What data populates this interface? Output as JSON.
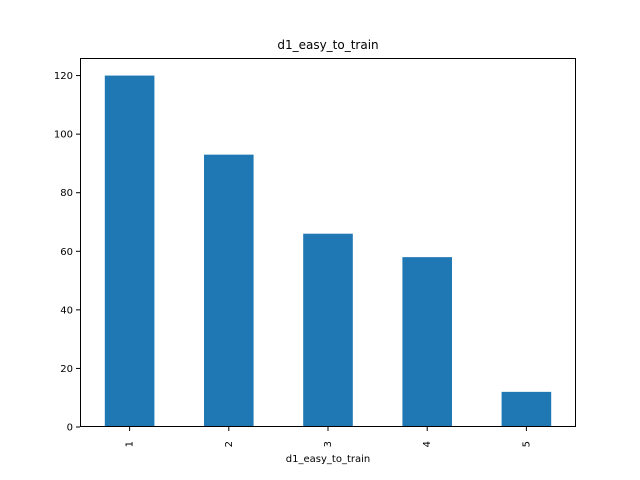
{
  "chart_data": {
    "type": "bar",
    "title": "d1_easy_to_train",
    "xlabel": "d1_easy_to_train",
    "ylabel": "",
    "categories": [
      "1",
      "2",
      "3",
      "4",
      "5"
    ],
    "values": [
      120,
      93,
      66,
      58,
      12
    ],
    "ylim": [
      0,
      126
    ],
    "yticks": [
      0,
      20,
      40,
      60,
      80,
      100,
      120
    ],
    "grid": false,
    "legend": "none",
    "bar_color": "#1f77b4"
  }
}
